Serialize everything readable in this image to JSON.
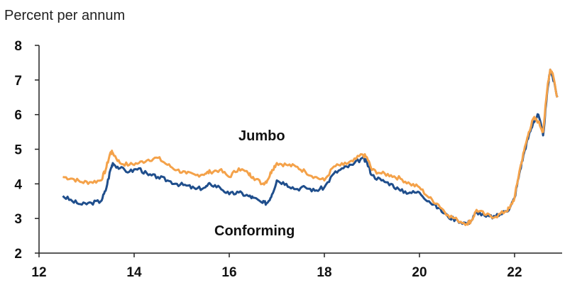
{
  "chart_data": {
    "type": "line",
    "ylabel": "Percent per annum",
    "xlim": [
      12,
      23
    ],
    "ylim": [
      2,
      8
    ],
    "x_ticks": [
      "12",
      "14",
      "16",
      "18",
      "20",
      "22"
    ],
    "y_ticks": [
      "2",
      "3",
      "4",
      "5",
      "6",
      "7",
      "8"
    ],
    "grid": false,
    "colors": {
      "jumbo": "#F4A24A",
      "conforming": "#1F4E8C"
    },
    "annotations": {
      "jumbo": "Jumbo",
      "conforming": "Conforming"
    },
    "series": [
      {
        "key": "conforming",
        "x": [
          12.5,
          12.7,
          12.9,
          13.1,
          13.3,
          13.4,
          13.5,
          13.55,
          13.7,
          13.9,
          14.1,
          14.3,
          14.5,
          14.7,
          14.9,
          15.1,
          15.3,
          15.5,
          15.6,
          15.8,
          16.0,
          16.2,
          16.4,
          16.5,
          16.7,
          16.8,
          16.9,
          17.0,
          17.2,
          17.4,
          17.6,
          17.8,
          18.0,
          18.2,
          18.4,
          18.6,
          18.8,
          18.9,
          19.0,
          19.2,
          19.4,
          19.6,
          19.8,
          20.0,
          20.2,
          20.4,
          20.6,
          20.8,
          21.0,
          21.1,
          21.2,
          21.4,
          21.6,
          21.8,
          21.9,
          22.0,
          22.1,
          22.2,
          22.3,
          22.4,
          22.5,
          22.6,
          22.7,
          22.75,
          22.8,
          22.9
        ],
        "y": [
          3.65,
          3.5,
          3.4,
          3.45,
          3.5,
          3.8,
          4.4,
          4.6,
          4.45,
          4.35,
          4.45,
          4.25,
          4.2,
          4.1,
          4.0,
          3.95,
          3.85,
          3.9,
          4.0,
          3.9,
          3.7,
          3.75,
          3.65,
          3.6,
          3.45,
          3.45,
          3.7,
          4.1,
          4.0,
          3.85,
          3.9,
          3.8,
          3.9,
          4.3,
          4.45,
          4.55,
          4.75,
          4.6,
          4.25,
          4.1,
          4.0,
          3.8,
          3.75,
          3.75,
          3.5,
          3.3,
          3.05,
          2.95,
          2.85,
          2.95,
          3.2,
          3.05,
          3.05,
          3.2,
          3.3,
          3.6,
          4.3,
          4.9,
          5.4,
          5.8,
          6.0,
          5.4,
          6.8,
          7.3,
          7.1,
          6.5
        ]
      },
      {
        "key": "jumbo",
        "x": [
          12.5,
          12.7,
          12.9,
          13.1,
          13.3,
          13.4,
          13.5,
          13.55,
          13.7,
          13.9,
          14.1,
          14.3,
          14.5,
          14.7,
          14.9,
          15.1,
          15.3,
          15.5,
          15.6,
          15.8,
          16.0,
          16.2,
          16.4,
          16.5,
          16.7,
          16.8,
          16.9,
          17.0,
          17.2,
          17.4,
          17.6,
          17.8,
          18.0,
          18.2,
          18.4,
          18.6,
          18.8,
          18.9,
          19.0,
          19.2,
          19.4,
          19.6,
          19.8,
          20.0,
          20.2,
          20.4,
          20.6,
          20.8,
          21.0,
          21.1,
          21.2,
          21.4,
          21.6,
          21.8,
          21.9,
          22.0,
          22.1,
          22.2,
          22.3,
          22.4,
          22.5,
          22.6,
          22.7,
          22.75,
          22.8,
          22.9
        ],
        "y": [
          4.2,
          4.15,
          4.05,
          4.05,
          4.1,
          4.4,
          4.9,
          4.9,
          4.6,
          4.55,
          4.6,
          4.7,
          4.75,
          4.55,
          4.4,
          4.3,
          4.25,
          4.3,
          4.35,
          4.4,
          4.2,
          4.45,
          4.3,
          4.2,
          4.0,
          4.1,
          4.4,
          4.6,
          4.55,
          4.5,
          4.35,
          4.2,
          4.1,
          4.5,
          4.55,
          4.65,
          4.85,
          4.75,
          4.4,
          4.3,
          4.25,
          4.15,
          4.0,
          3.9,
          3.6,
          3.4,
          3.1,
          2.95,
          2.85,
          2.95,
          3.25,
          3.1,
          3.05,
          3.2,
          3.3,
          3.6,
          4.35,
          4.95,
          5.5,
          5.9,
          5.8,
          5.5,
          6.9,
          7.3,
          7.2,
          6.5
        ]
      }
    ]
  }
}
